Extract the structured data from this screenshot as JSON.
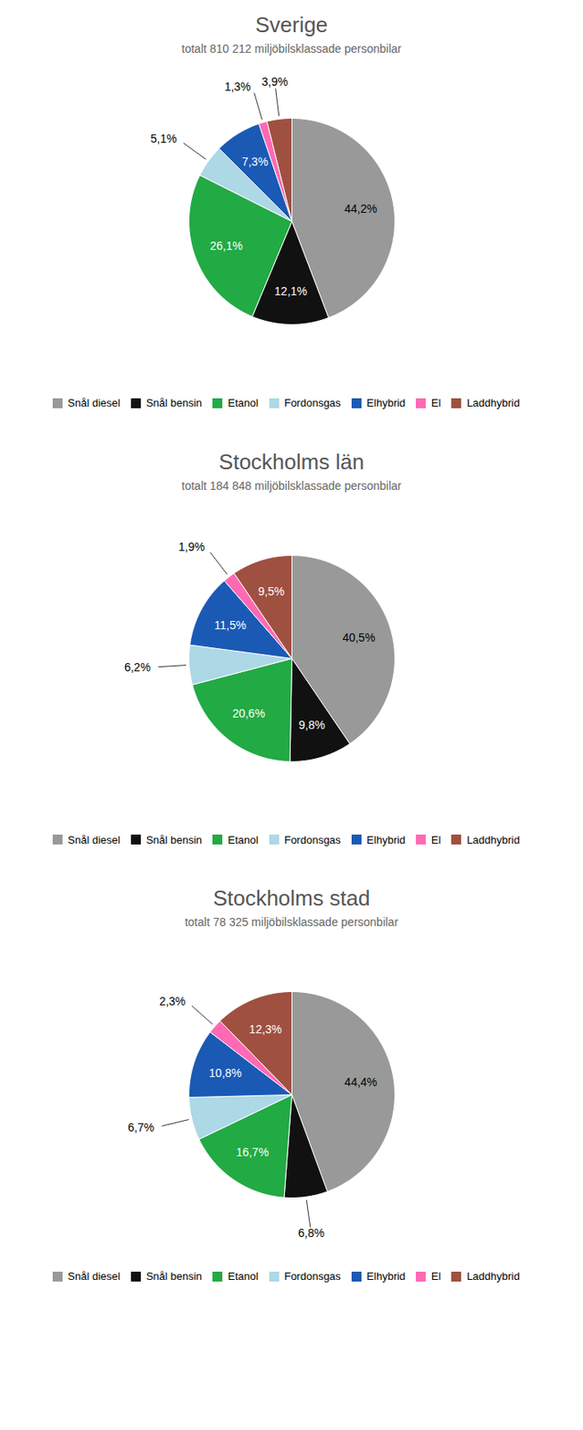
{
  "chart_data": [
    {
      "type": "pie",
      "title": "Sverige",
      "subtitle": "totalt 810 212 miljöbilsklassade personbilar",
      "categories": [
        "Snål diesel",
        "Snål bensin",
        "Etanol",
        "Fordonsgas",
        "Elhybrid",
        "El",
        "Laddhybrid"
      ],
      "values": [
        44.2,
        12.1,
        26.1,
        5.1,
        7.3,
        1.3,
        3.9
      ],
      "value_labels": [
        "44,2%",
        "12,1%",
        "26,1%",
        "5,1%",
        "7,3%",
        "1,3%",
        "3,9%"
      ],
      "colors": [
        "#999999",
        "#111111",
        "#22aa44",
        "#add8e6",
        "#1a5ab5",
        "#ff69b4",
        "#a05040"
      ],
      "data_labels": true,
      "legend": "bottom"
    },
    {
      "type": "pie",
      "title": "Stockholms län",
      "subtitle": "totalt 184 848 miljöbilsklassade personbilar",
      "categories": [
        "Snål diesel",
        "Snål bensin",
        "Etanol",
        "Fordonsgas",
        "Elhybrid",
        "El",
        "Laddhybrid"
      ],
      "values": [
        40.5,
        9.8,
        20.6,
        6.2,
        11.5,
        1.9,
        9.5
      ],
      "value_labels": [
        "40,5%",
        "9,8%",
        "20,6%",
        "6,2%",
        "11,5%",
        "1,9%",
        "9,5%"
      ],
      "colors": [
        "#999999",
        "#111111",
        "#22aa44",
        "#add8e6",
        "#1a5ab5",
        "#ff69b4",
        "#a05040"
      ],
      "data_labels": true,
      "legend": "bottom"
    },
    {
      "type": "pie",
      "title": "Stockholms stad",
      "subtitle": "totalt 78 325 miljöbilsklassade personbilar",
      "categories": [
        "Snål diesel",
        "Snål bensin",
        "Etanol",
        "Fordonsgas",
        "Elhybrid",
        "El",
        "Laddhybrid"
      ],
      "values": [
        44.4,
        6.8,
        16.7,
        6.7,
        10.8,
        2.3,
        12.3
      ],
      "value_labels": [
        "44,4%",
        "6,8%",
        "16,7%",
        "6,7%",
        "10,8%",
        "2,3%",
        "12,3%"
      ],
      "colors": [
        "#999999",
        "#111111",
        "#22aa44",
        "#add8e6",
        "#1a5ab5",
        "#ff69b4",
        "#a05040"
      ],
      "data_labels": true,
      "legend": "bottom"
    }
  ]
}
